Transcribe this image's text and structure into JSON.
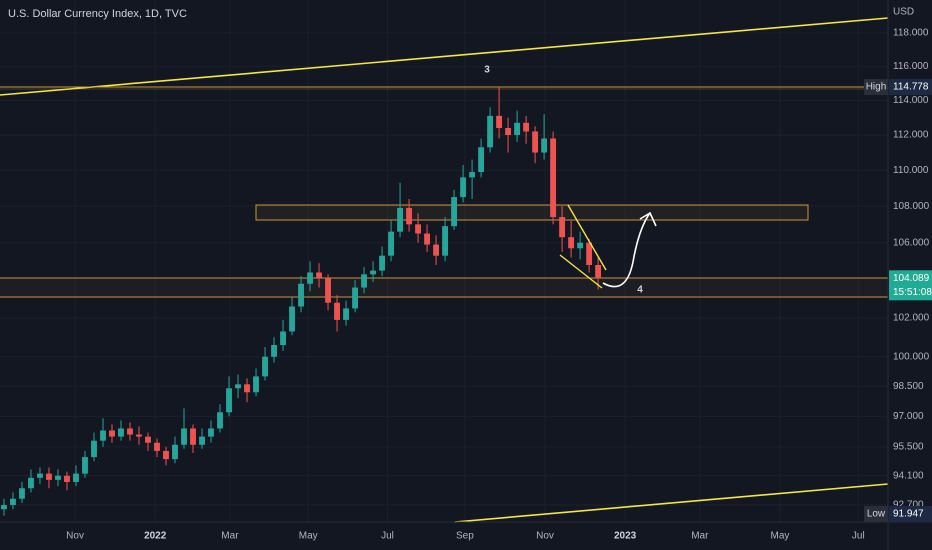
{
  "chart_data": {
    "type": "candlestick",
    "title": "U.S. Dollar Currency Index, 1D, TVC",
    "currency": "USD",
    "log_scale": true,
    "grid": true,
    "up_color": "#26a69a",
    "down_color": "#ef5350",
    "open": [
      92.5,
      92.7,
      93.0,
      93.5,
      94.0,
      94.2,
      93.9,
      94.1,
      93.8,
      94.2,
      95.0,
      95.8,
      96.3,
      96.0,
      96.4,
      96.1,
      96.0,
      95.7,
      95.3,
      94.9,
      95.6,
      96.4,
      95.6,
      96.0,
      96.4,
      97.2,
      98.4,
      98.6,
      98.2,
      99.0,
      100.0,
      100.6,
      101.3,
      102.6,
      103.8,
      104.4,
      104.1,
      102.8,
      101.9,
      102.5,
      103.6,
      104.3,
      104.5,
      105.3,
      106.6,
      107.9,
      107.0,
      106.5,
      105.9,
      105.3,
      106.9,
      108.5,
      109.6,
      109.9,
      111.3,
      113.1,
      112.4,
      112.0,
      112.7,
      112.2,
      111.0,
      111.8,
      107.4,
      106.3,
      105.7,
      106.0,
      104.8
    ],
    "high": [
      93.0,
      93.3,
      93.8,
      94.4,
      94.5,
      94.5,
      94.4,
      94.3,
      94.6,
      95.3,
      96.2,
      96.9,
      96.6,
      96.8,
      96.7,
      96.5,
      96.2,
      95.9,
      95.5,
      96.0,
      97.4,
      96.6,
      96.4,
      96.8,
      97.6,
      99.0,
      99.1,
      98.9,
      99.4,
      100.5,
      101.0,
      101.9,
      103.1,
      104.2,
      105.0,
      104.9,
      104.3,
      103.2,
      102.9,
      104.0,
      104.7,
      105.0,
      105.8,
      107.2,
      109.3,
      108.4,
      107.6,
      107.0,
      106.4,
      107.4,
      108.9,
      110.3,
      110.6,
      111.8,
      113.6,
      114.778,
      113.0,
      113.4,
      113.1,
      112.5,
      113.2,
      112.2,
      108.0,
      107.2,
      106.6,
      106.2,
      105.2
    ],
    "low": [
      92.2,
      92.5,
      92.8,
      93.3,
      93.7,
      93.5,
      93.6,
      93.4,
      93.6,
      94.0,
      94.8,
      95.5,
      95.7,
      95.8,
      95.8,
      95.6,
      95.3,
      95.0,
      94.6,
      94.7,
      95.4,
      95.2,
      95.4,
      95.7,
      96.2,
      97.0,
      97.9,
      97.7,
      98.0,
      98.8,
      99.7,
      100.3,
      101.1,
      102.3,
      103.4,
      103.6,
      102.4,
      101.3,
      101.6,
      102.3,
      103.3,
      103.9,
      104.2,
      105.0,
      106.3,
      106.6,
      106.0,
      105.5,
      104.8,
      105.0,
      106.7,
      108.2,
      108.4,
      109.6,
      111.0,
      111.8,
      111.0,
      111.6,
      111.5,
      110.4,
      110.6,
      107.0,
      105.5,
      105.2,
      105.1,
      104.4,
      103.5
    ],
    "close": [
      92.7,
      93.0,
      93.5,
      94.0,
      94.2,
      93.9,
      94.1,
      93.8,
      94.2,
      95.0,
      95.8,
      96.3,
      96.0,
      96.4,
      96.1,
      96.0,
      95.7,
      95.3,
      94.9,
      95.6,
      96.4,
      95.6,
      96.0,
      96.4,
      97.2,
      98.4,
      98.6,
      98.2,
      99.0,
      100.0,
      100.6,
      101.3,
      102.6,
      103.8,
      104.4,
      104.1,
      102.8,
      101.9,
      102.5,
      103.6,
      104.3,
      104.5,
      105.3,
      106.6,
      107.9,
      107.0,
      106.5,
      105.9,
      105.3,
      106.9,
      108.5,
      109.6,
      109.9,
      111.3,
      113.1,
      112.4,
      112.0,
      112.7,
      112.2,
      111.0,
      111.8,
      107.4,
      106.3,
      105.7,
      106.0,
      104.8,
      104.1
    ],
    "xlim": [
      -0.44,
      98.2
    ],
    "xticks": [
      {
        "value": 7.9,
        "label": "Nov"
      },
      {
        "value": 16.8,
        "label": "2022"
      },
      {
        "value": 25.1,
        "label": "Mar"
      },
      {
        "value": 33.8,
        "label": "May"
      },
      {
        "value": 42.6,
        "label": "Jul"
      },
      {
        "value": 51.2,
        "label": "Sep"
      },
      {
        "value": 60.1,
        "label": "Nov"
      },
      {
        "value": 69.0,
        "label": "2023"
      },
      {
        "value": 77.3,
        "label": "Mar"
      },
      {
        "value": 86.2,
        "label": "May"
      },
      {
        "value": 94.9,
        "label": "Jul"
      }
    ],
    "ylim": [
      91.9,
      120.0
    ],
    "yticks": [
      {
        "value": 118,
        "label": "118.000"
      },
      {
        "value": 116,
        "label": "116.000"
      },
      {
        "value": 114,
        "label": "114.000"
      },
      {
        "value": 112,
        "label": "112.000"
      },
      {
        "value": 110,
        "label": "110.000"
      },
      {
        "value": 108,
        "label": "108.000"
      },
      {
        "value": 106,
        "label": "106.000"
      },
      {
        "value": 102,
        "label": "102.000"
      },
      {
        "value": 100,
        "label": "100.000"
      },
      {
        "value": 98.5,
        "label": "98.500"
      },
      {
        "value": 97,
        "label": "97.000"
      },
      {
        "value": 95.5,
        "label": "95.500"
      },
      {
        "value": 94.1,
        "label": "94.100"
      },
      {
        "value": 92.7,
        "label": "92.700"
      }
    ],
    "high_label": {
      "label": "High",
      "value": 114.778
    },
    "low_label": {
      "label": "Low",
      "value": 91.947
    },
    "last_price": 104.089,
    "countdown": "15:51:08",
    "annotations": [
      "3",
      "4"
    ]
  }
}
